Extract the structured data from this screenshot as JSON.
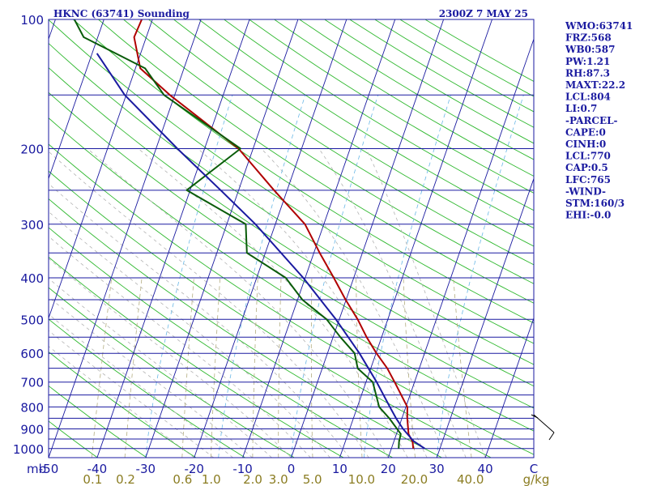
{
  "title_left": "HKNC (63741) Sounding",
  "title_right": "2300Z  7 MAY 25",
  "colors": {
    "frame": "#1a1aa0",
    "isobar": "#1a1aa0",
    "isotherm": "#1a1aa0",
    "dry_adiabat": "#2eb82e",
    "moist_adiabat": "#b3b3b3",
    "mixing_ratio": "#b3ad80",
    "mixing_ratio_label": "#8b7d22",
    "wet_bulb_dashed": "#6ab8e6",
    "temperature": "#b00000",
    "dewpoint": "#0a5c0a",
    "parcel": "#1a1aa0"
  },
  "stats": [
    "WMO:63741",
    "FRZ:568",
    "WB0:587",
    "PW:1.21",
    "RH:87.3",
    "MAXT:22.2",
    "LCL:804",
    "LI:0.7",
    "-PARCEL-",
    "CAPE:0",
    "CINH:0",
    "LCL:770",
    "CAP:0.5",
    "LFC:765",
    "-WIND-",
    "STM:160/3",
    "EHI:-0.0"
  ],
  "chart_data": {
    "type": "line",
    "subtype": "skew-T log-P sounding",
    "y_axis": {
      "units": "mb",
      "scale": "log",
      "range": [
        1050,
        100
      ],
      "tick_labels": [
        "100",
        "200",
        "300",
        "400",
        "500",
        "600",
        "700",
        "800",
        "900",
        "1000"
      ],
      "isobars": [
        100,
        150,
        200,
        250,
        300,
        350,
        400,
        450,
        500,
        550,
        600,
        650,
        700,
        750,
        800,
        850,
        900,
        950,
        1000,
        1050
      ]
    },
    "x_axis": {
      "units": "C",
      "tick_labels": [
        "-50",
        "-40",
        "-30",
        "-20",
        "-10",
        "0",
        "10",
        "20",
        "30",
        "40",
        "C"
      ],
      "tick_values": [
        -50,
        -40,
        -30,
        -20,
        -10,
        0,
        10,
        20,
        30,
        40,
        50
      ],
      "skewed": true
    },
    "mixing_ratio_axis": {
      "units": "g/kg",
      "tick_labels": [
        "0.1",
        "0.2",
        "0.6",
        "1.0",
        "2.0",
        "3.0",
        "5.0",
        "10.0",
        "20.0",
        "40.0",
        "g/kg"
      ]
    },
    "series": [
      {
        "key": "temperature",
        "points": [
          [
            1000,
            24.5
          ],
          [
            965,
            23.9
          ],
          [
            925,
            22.5
          ],
          [
            850,
            21.1
          ],
          [
            800,
            20.3
          ],
          [
            700,
            15.9
          ],
          [
            650,
            13.4
          ],
          [
            600,
            10.1
          ],
          [
            550,
            6.9
          ],
          [
            500,
            3.8
          ],
          [
            450,
            -0.1
          ],
          [
            400,
            -4.1
          ],
          [
            350,
            -8.8
          ],
          [
            300,
            -13.9
          ],
          [
            250,
            -22.7
          ],
          [
            200,
            -33.0
          ],
          [
            150,
            -51.0
          ],
          [
            130,
            -59.0
          ],
          [
            110,
            -62.5
          ],
          [
            100,
            -62.2
          ]
        ]
      },
      {
        "key": "dewpoint",
        "points": [
          [
            1000,
            21.5
          ],
          [
            965,
            21.1
          ],
          [
            925,
            20.9
          ],
          [
            850,
            17.4
          ],
          [
            800,
            14.5
          ],
          [
            700,
            11.4
          ],
          [
            650,
            7.3
          ],
          [
            600,
            5.6
          ],
          [
            550,
            1.5
          ],
          [
            500,
            -2.6
          ],
          [
            450,
            -9.0
          ],
          [
            400,
            -14.0
          ],
          [
            350,
            -23.8
          ],
          [
            300,
            -26.1
          ],
          [
            250,
            -40.7
          ],
          [
            200,
            -32.6
          ],
          [
            150,
            -52.2
          ],
          [
            130,
            -58.0
          ],
          [
            110,
            -72.9
          ],
          [
            100,
            -76.1
          ]
        ]
      },
      {
        "key": "parcel",
        "points": [
          [
            1000,
            26.9
          ],
          [
            960,
            24.0
          ],
          [
            900,
            21.0
          ],
          [
            850,
            18.8
          ],
          [
            800,
            16.7
          ],
          [
            700,
            12.2
          ],
          [
            600,
            6.6
          ],
          [
            500,
            -0.7
          ],
          [
            400,
            -10.4
          ],
          [
            300,
            -24.1
          ],
          [
            250,
            -33.7
          ],
          [
            200,
            -45.6
          ],
          [
            150,
            -60.3
          ],
          [
            120,
            -69.0
          ]
        ]
      }
    ]
  }
}
